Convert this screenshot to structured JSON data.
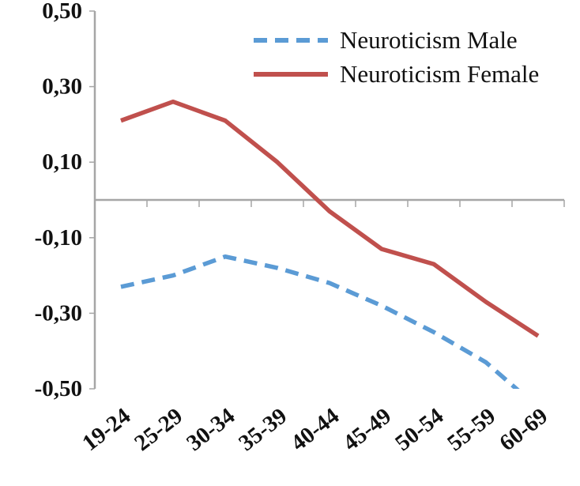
{
  "chart_data": {
    "type": "line",
    "title": "",
    "xlabel": "",
    "ylabel": "",
    "categories": [
      "19-24",
      "25-29",
      "30-34",
      "35-39",
      "40-44",
      "45-49",
      "50-54",
      "55-59",
      "60-69"
    ],
    "series": [
      {
        "name": "Neuroticism Male",
        "style": "dashed",
        "color": "#5B9BD5",
        "values": [
          -0.23,
          -0.2,
          -0.15,
          -0.18,
          -0.22,
          -0.28,
          -0.35,
          -0.43,
          -0.55
        ]
      },
      {
        "name": "Neuroticism Female",
        "style": "solid",
        "color": "#C0504D",
        "values": [
          0.21,
          0.26,
          0.21,
          0.1,
          -0.03,
          -0.13,
          -0.17,
          -0.27,
          -0.36
        ]
      }
    ],
    "ylim": [
      -0.5,
      0.5
    ],
    "yticks": [
      {
        "value": 0.5,
        "label": "0,50"
      },
      {
        "value": 0.3,
        "label": "0,30"
      },
      {
        "value": 0.1,
        "label": "0,10"
      },
      {
        "value": -0.1,
        "label": "-0,10"
      },
      {
        "value": -0.3,
        "label": "-0,30"
      },
      {
        "value": -0.5,
        "label": "-0,50"
      }
    ],
    "grid": false,
    "legend_position": "top-right-inside",
    "axis_color": "#a6a6a6",
    "text_color": "#111111"
  }
}
